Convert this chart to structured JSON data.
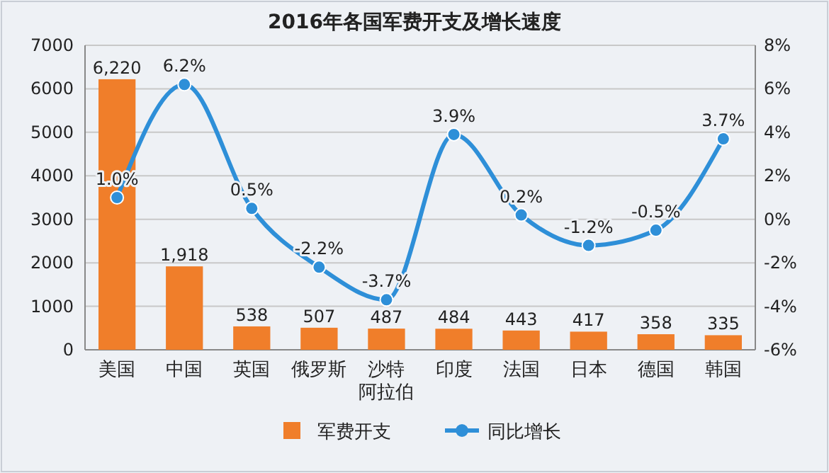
{
  "chart_data": {
    "type": "bar",
    "title": "2016年各国军费开支及增长速度",
    "categories": [
      "美国",
      "中国",
      "英国",
      "俄罗斯",
      "沙特阿拉伯",
      "印度",
      "法国",
      "日本",
      "德国",
      "韩国"
    ],
    "series": [
      {
        "name": "军费开支",
        "color": "#f07e2a",
        "values": [
          6220,
          1918,
          538,
          507,
          487,
          484,
          443,
          417,
          358,
          335
        ],
        "value_labels": [
          "6,220",
          "1,918",
          "538",
          "507",
          "487",
          "484",
          "443",
          "417",
          "358",
          "335"
        ]
      },
      {
        "name": "同比增长",
        "type": "line",
        "axis": "y2",
        "color": "#2e8fd8",
        "values": [
          1.0,
          6.2,
          0.5,
          -2.2,
          -3.7,
          3.9,
          0.2,
          -1.2,
          -0.5,
          3.7
        ],
        "value_labels": [
          "1.0%",
          "6.2%",
          "0.5%",
          "-2.2%",
          "-3.7%",
          "3.9%",
          "0.2%",
          "-1.2%",
          "-0.5%",
          "3.7%"
        ]
      }
    ],
    "ylim": [
      0,
      7000
    ],
    "yticks": [
      0,
      1000,
      2000,
      3000,
      4000,
      5000,
      6000,
      7000
    ],
    "y2lim": [
      -6,
      8
    ],
    "y2ticks": [
      {
        "value": -6,
        "label": "-6%"
      },
      {
        "value": -4,
        "label": "-4%"
      },
      {
        "value": -2,
        "label": "-2%"
      },
      {
        "value": 0,
        "label": "0%"
      },
      {
        "value": 2,
        "label": "2%"
      },
      {
        "value": 4,
        "label": "4%"
      },
      {
        "value": 6,
        "label": "6%"
      },
      {
        "value": 8,
        "label": "8%"
      }
    ],
    "grid": "y",
    "legend": "bottom",
    "marker": "circle",
    "line_style": "solid"
  }
}
